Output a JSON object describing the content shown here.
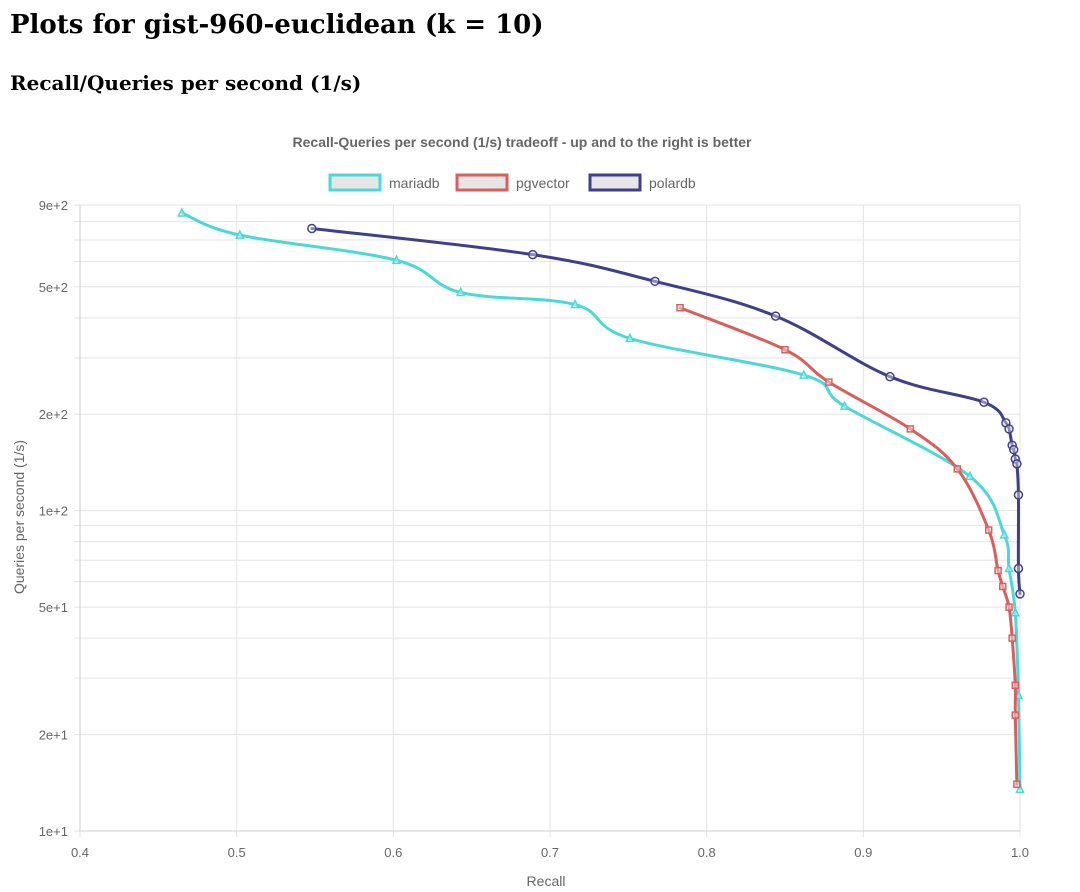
{
  "page": {
    "title": "Plots for gist-960-euclidean (k = 10)",
    "section_heading": "Recall/Queries per second (1/s)"
  },
  "colors": {
    "mariadb": "#4dd8d8",
    "pgvector": "#d95f5f",
    "polardb": "#3f3f8c",
    "grid": "#e3e3e3",
    "text": "#666666"
  },
  "chart_data": {
    "type": "line",
    "title": "Recall-Queries per second (1/s) tradeoff - up and to the right is better",
    "xlabel": "Recall",
    "ylabel": "Queries per second (1/s)",
    "xlim": [
      0.4,
      1.0
    ],
    "ylim": [
      10,
      900
    ],
    "yscale": "log",
    "grid": true,
    "legend_position": "top",
    "x_ticks": [
      "0.4",
      "0.5",
      "0.6",
      "0.7",
      "0.8",
      "0.9",
      "1.0"
    ],
    "x_tick_values": [
      0.4,
      0.5,
      0.6,
      0.7,
      0.8,
      0.9,
      1.0
    ],
    "y_ticks": [
      "1e+1",
      "2e+1",
      "5e+1",
      "1e+2",
      "2e+2",
      "5e+2",
      "9e+2"
    ],
    "y_tick_values": [
      10,
      20,
      50,
      100,
      200,
      500,
      900
    ],
    "series": [
      {
        "name": "mariadb",
        "marker": "triangle",
        "x": [
          0.465,
          0.502,
          0.602,
          0.643,
          0.716,
          0.751,
          0.862,
          0.888,
          0.968,
          0.99,
          0.993,
          0.997,
          0.999,
          1.0
        ],
        "y": [
          850,
          725,
          605,
          480,
          440,
          345,
          265,
          212,
          128,
          84,
          66,
          48,
          26.5,
          13.5
        ]
      },
      {
        "name": "pgvector",
        "marker": "square",
        "x": [
          0.783,
          0.85,
          0.878,
          0.93,
          0.96,
          0.98,
          0.986,
          0.989,
          0.993,
          0.995,
          0.997,
          0.997,
          0.998
        ],
        "y": [
          430,
          318,
          252,
          180,
          135,
          87,
          65,
          58,
          50,
          40,
          28.5,
          23,
          14
        ]
      },
      {
        "name": "polardb",
        "marker": "circle",
        "x": [
          0.548,
          0.689,
          0.767,
          0.844,
          0.917,
          0.977,
          0.991,
          0.993,
          0.995,
          0.996,
          0.997,
          0.998,
          0.999,
          0.999,
          1.0
        ],
        "y": [
          760,
          630,
          520,
          405,
          262,
          218,
          188,
          180,
          160,
          155,
          145,
          140,
          112,
          66,
          55
        ]
      }
    ]
  }
}
